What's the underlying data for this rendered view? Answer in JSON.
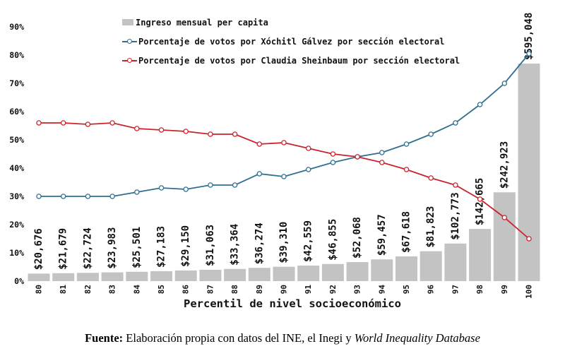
{
  "chart_data": {
    "type": "bar+line combo",
    "categories": [
      80,
      81,
      82,
      83,
      84,
      85,
      86,
      87,
      88,
      89,
      90,
      91,
      92,
      93,
      94,
      95,
      96,
      97,
      98,
      99,
      100
    ],
    "bar_series": {
      "name": "Ingreso mensual per capita",
      "color": "#c3c3c3",
      "values": [
        20676,
        21679,
        22724,
        23983,
        25501,
        27183,
        29150,
        31063,
        33364,
        36274,
        39310,
        42559,
        46855,
        52068,
        59457,
        67618,
        81823,
        102773,
        142665,
        242923,
        595048
      ],
      "labels": [
        "$20,676",
        "$21,679",
        "$22,724",
        "$23,983",
        "$25,501",
        "$27,183",
        "$29,150",
        "$31,063",
        "$33,364",
        "$36,274",
        "$39,310",
        "$42,559",
        "$46,855",
        "$52,068",
        "$59,457",
        "$67,618",
        "$81,823",
        "$102,773",
        "$142,665",
        "$242,923",
        "$595,048"
      ]
    },
    "line_series": [
      {
        "name": "Porcentaje de votos por Xóchitl Gálvez por sección electoral",
        "color": "#2f6f8f",
        "values": [
          30,
          30,
          30,
          30,
          31.5,
          33,
          32.5,
          34,
          34,
          38,
          37,
          39.5,
          42,
          44,
          45.5,
          48.5,
          52,
          56,
          62.5,
          70,
          80.5
        ]
      },
      {
        "name": "Porcentaje de votos por Claudia Sheinbaum por sección electoral",
        "color": "#c9232d",
        "values": [
          56,
          56,
          55.5,
          56,
          54,
          53.5,
          53,
          52,
          52,
          48.5,
          49,
          47,
          45,
          44,
          42,
          39.5,
          36.5,
          34,
          29,
          22.5,
          15
        ]
      }
    ],
    "xlabel": "Percentil de nivel socioeconómico",
    "y_axis": {
      "min": 0,
      "max": 90,
      "step": 10,
      "unit": "%",
      "tick_labels": [
        "0%",
        "10%",
        "20%",
        "30%",
        "40%",
        "50%",
        "60%",
        "70%",
        "80%",
        "90%"
      ],
      "grid": false
    },
    "legend_position": "top-center-inside",
    "lines_cross_at": {
      "percentile": 93,
      "value_pct": 44
    }
  },
  "footer": {
    "bold": "Fuente:",
    "normal": " Elaboración propia con datos del INE, el Inegi y ",
    "italic": "World Inequality Database"
  }
}
